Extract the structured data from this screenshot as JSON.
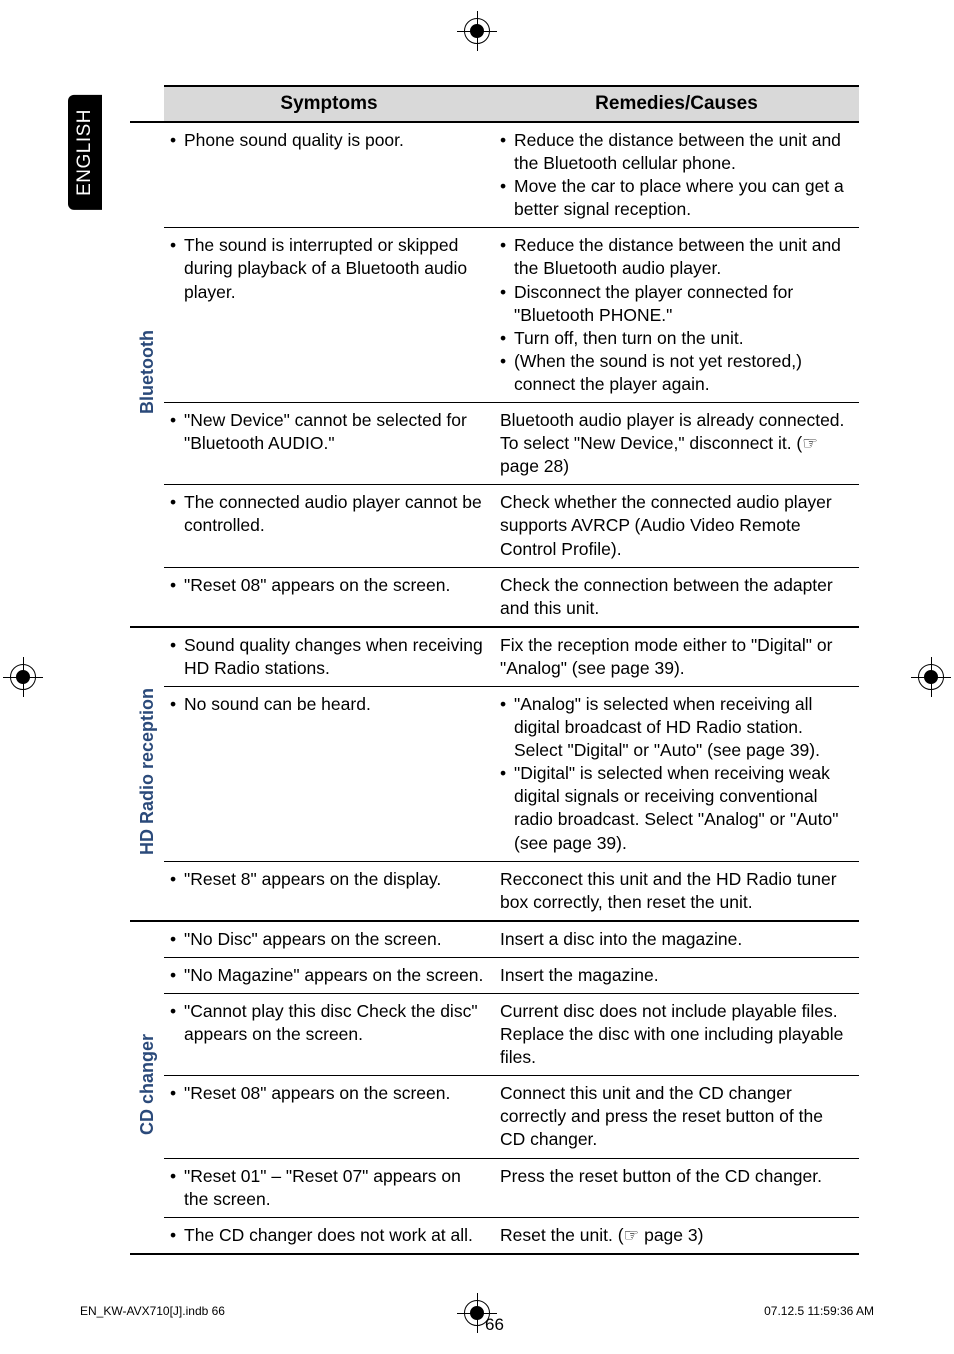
{
  "language_tab": "ENGLISH",
  "headers": {
    "symptoms": "Symptoms",
    "remedies": "Remedies/Causes"
  },
  "sections": [
    {
      "category": "Bluetooth",
      "rows": [
        {
          "symptoms": [
            "Phone sound quality is poor."
          ],
          "remedies": [
            "Reduce the distance between the unit and the Bluetooth cellular phone.",
            "Move the car to place where you can get a better signal reception."
          ]
        },
        {
          "symptoms": [
            "The sound is interrupted or skipped during playback of a Bluetooth audio player."
          ],
          "remedies": [
            "Reduce the distance between the unit and the Bluetooth audio player.",
            "Disconnect the player connected for \"Bluetooth PHONE.\"",
            "Turn off, then turn on the unit.",
            "(When the sound is not yet restored,) connect the player again."
          ]
        },
        {
          "symptoms": [
            "\"New Device\" cannot be selected for \"Bluetooth AUDIO.\""
          ],
          "remedies_plain": "Bluetooth audio player is already connected. To select \"New Device,\" disconnect it. (☞ page 28)"
        },
        {
          "symptoms": [
            "The connected audio player cannot be controlled."
          ],
          "remedies_plain": "Check whether the connected audio player supports AVRCP (Audio Video Remote Control Profile)."
        },
        {
          "symptoms": [
            "\"Reset 08\" appears on the screen."
          ],
          "remedies_plain": "Check the connection between the adapter and this unit."
        }
      ]
    },
    {
      "category": "HD Radio reception",
      "rows": [
        {
          "symptoms": [
            "Sound quality changes when receiving HD Radio stations."
          ],
          "remedies_plain": "Fix the reception mode either to \"Digital\" or \"Analog\" (see page 39)."
        },
        {
          "symptoms": [
            "No sound can be heard."
          ],
          "remedies": [
            "\"Analog\" is selected when receiving all digital broadcast of HD Radio station. Select \"Digital\" or \"Auto\" (see page 39).",
            "\"Digital\" is selected when receiving weak digital signals or receiving conventional radio broadcast. Select \"Analog\" or \"Auto\" (see page 39)."
          ]
        },
        {
          "symptoms": [
            "\"Reset 8\" appears on the display."
          ],
          "remedies_plain": "Recconect this unit and the HD Radio tuner box correctly, then reset the unit."
        }
      ]
    },
    {
      "category": "CD changer",
      "rows": [
        {
          "symptoms": [
            "\"No Disc\" appears on the screen."
          ],
          "remedies_plain": "Insert a disc into the magazine."
        },
        {
          "symptoms": [
            "\"No Magazine\" appears on the screen."
          ],
          "remedies_plain": "Insert the magazine."
        },
        {
          "symptoms": [
            "\"Cannot play this disc Check the disc\" appears on the screen."
          ],
          "remedies_plain": "Current disc does not include playable files. Replace the disc with one including playable files."
        },
        {
          "symptoms": [
            "\"Reset 08\" appears on the screen."
          ],
          "remedies_plain": "Connect this unit and the CD changer correctly and press the reset button of the CD changer."
        },
        {
          "symptoms": [
            "\"Reset 01\" – \"Reset 07\" appears on the screen."
          ],
          "remedies_plain": "Press the reset button of the CD changer."
        },
        {
          "symptoms": [
            "The CD changer does not work at all."
          ],
          "remedies_plain": "Reset the unit. (☞ page 3)"
        }
      ]
    }
  ],
  "page_number": "66",
  "footer_left": "EN_KW-AVX710[J].indb   66",
  "footer_right": "07.12.5   11:59:36 AM"
}
